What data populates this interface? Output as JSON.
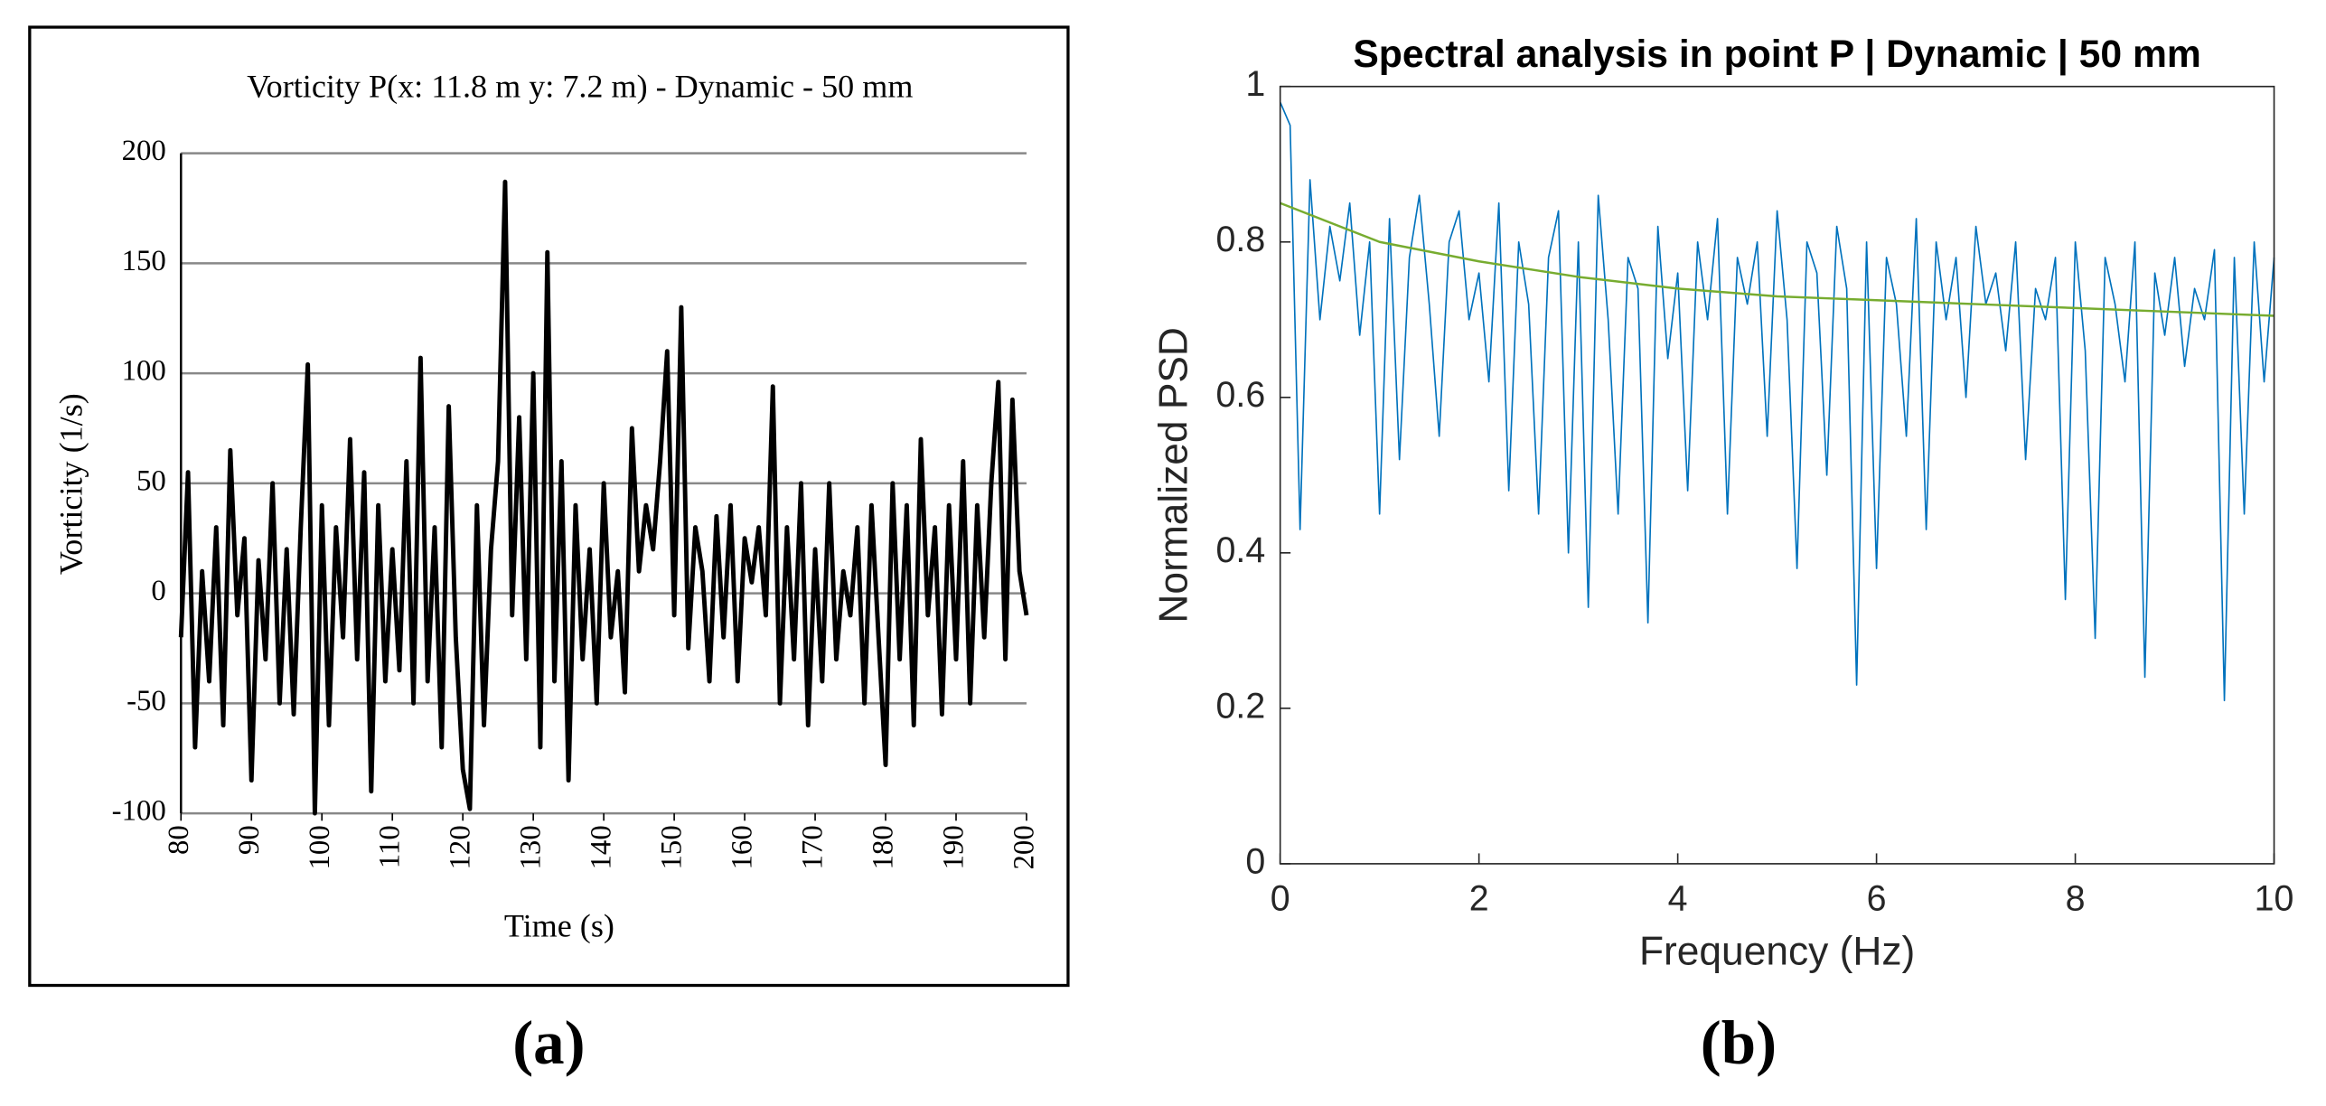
{
  "chart_data": [
    {
      "type": "line",
      "title": "Vorticity P(x: 11.8 m y: 7.2 m) - Dynamic - 50 mm",
      "xlabel": "Time (s)",
      "ylabel": "Vorticity (1/s)",
      "panel_label": "(a)",
      "xlim": [
        80,
        200
      ],
      "ylim": [
        -100,
        200
      ],
      "xticks": [
        80,
        90,
        100,
        110,
        120,
        130,
        140,
        150,
        160,
        170,
        180,
        190,
        200
      ],
      "yticks": [
        -100,
        -50,
        0,
        50,
        100,
        150,
        200
      ],
      "grid": true,
      "series": [
        {
          "color": "#000000",
          "x": [
            80,
            81,
            82,
            83,
            84,
            85,
            86,
            87,
            88,
            89,
            90,
            91,
            92,
            93,
            94,
            95,
            96,
            97,
            98,
            99,
            100,
            101,
            102,
            103,
            104,
            105,
            106,
            107,
            108,
            109,
            110,
            111,
            112,
            113,
            114,
            115,
            116,
            117,
            118,
            119,
            120,
            121,
            122,
            123,
            124,
            125,
            126,
            127,
            128,
            129,
            130,
            131,
            132,
            133,
            134,
            135,
            136,
            137,
            138,
            139,
            140,
            141,
            142,
            143,
            144,
            145,
            146,
            147,
            148,
            149,
            150,
            151,
            152,
            153,
            154,
            155,
            156,
            157,
            158,
            159,
            160,
            161,
            162,
            163,
            164,
            165,
            166,
            167,
            168,
            169,
            170,
            171,
            172,
            173,
            174,
            175,
            176,
            177,
            178,
            179,
            180,
            181,
            182,
            183,
            184,
            185,
            186,
            187,
            188,
            189,
            190,
            191,
            192,
            193,
            194,
            195,
            196,
            197,
            198,
            199,
            200
          ],
          "values": [
            -20,
            55,
            -70,
            10,
            -40,
            30,
            -60,
            65,
            -10,
            25,
            -85,
            15,
            -30,
            50,
            -50,
            20,
            -55,
            30,
            104,
            -100,
            40,
            -60,
            30,
            -20,
            70,
            -30,
            55,
            -90,
            40,
            -40,
            20,
            -35,
            60,
            -50,
            107,
            -40,
            30,
            -70,
            85,
            -20,
            -80,
            -98,
            40,
            -60,
            20,
            60,
            187,
            -10,
            80,
            -30,
            100,
            -70,
            155,
            -40,
            60,
            -85,
            40,
            -30,
            20,
            -50,
            50,
            -20,
            10,
            -45,
            75,
            10,
            40,
            20,
            60,
            110,
            -10,
            130,
            -25,
            30,
            10,
            -40,
            35,
            -20,
            40,
            -40,
            25,
            5,
            30,
            -10,
            94,
            -50,
            30,
            -30,
            50,
            -60,
            20,
            -40,
            50,
            -30,
            10,
            -10,
            30,
            -50,
            40,
            -20,
            -78,
            50,
            -30,
            40,
            -60,
            70,
            -10,
            30,
            -55,
            40,
            -30,
            60,
            -50,
            40,
            -20,
            50,
            96,
            -30,
            88,
            10,
            -10
          ]
        }
      ]
    },
    {
      "type": "line",
      "title": "Spectral analysis in point P | Dynamic | 50 mm",
      "xlabel": "Frequency (Hz)",
      "ylabel": "Normalized PSD",
      "panel_label": "(b)",
      "xlim": [
        0,
        10
      ],
      "ylim": [
        0,
        1
      ],
      "xticks": [
        0,
        2,
        4,
        6,
        8,
        10
      ],
      "yticks": [
        0,
        0.2,
        0.4,
        0.6,
        0.8,
        1
      ],
      "grid": false,
      "series": [
        {
          "color": "#0072bd",
          "x": [
            0,
            0.1,
            0.2,
            0.3,
            0.4,
            0.5,
            0.6,
            0.7,
            0.8,
            0.9,
            1,
            1.1,
            1.2,
            1.3,
            1.4,
            1.5,
            1.6,
            1.7,
            1.8,
            1.9,
            2,
            2.1,
            2.2,
            2.3,
            2.4,
            2.5,
            2.6,
            2.7,
            2.8,
            2.9,
            3,
            3.1,
            3.2,
            3.3,
            3.4,
            3.5,
            3.6,
            3.7,
            3.8,
            3.9,
            4,
            4.1,
            4.2,
            4.3,
            4.4,
            4.5,
            4.6,
            4.7,
            4.8,
            4.9,
            5,
            5.1,
            5.2,
            5.3,
            5.4,
            5.5,
            5.6,
            5.7,
            5.8,
            5.9,
            6,
            6.1,
            6.2,
            6.3,
            6.4,
            6.5,
            6.6,
            6.7,
            6.8,
            6.9,
            7,
            7.1,
            7.2,
            7.3,
            7.4,
            7.5,
            7.6,
            7.7,
            7.8,
            7.9,
            8,
            8.1,
            8.2,
            8.3,
            8.4,
            8.5,
            8.6,
            8.7,
            8.8,
            8.9,
            9,
            9.1,
            9.2,
            9.3,
            9.4,
            9.5,
            9.6,
            9.7,
            9.8,
            9.9,
            10
          ],
          "values": [
            0.98,
            0.95,
            0.43,
            0.88,
            0.7,
            0.82,
            0.75,
            0.85,
            0.68,
            0.8,
            0.45,
            0.83,
            0.52,
            0.78,
            0.86,
            0.72,
            0.55,
            0.8,
            0.84,
            0.7,
            0.76,
            0.62,
            0.85,
            0.48,
            0.8,
            0.72,
            0.45,
            0.78,
            0.84,
            0.4,
            0.8,
            0.33,
            0.86,
            0.7,
            0.45,
            0.78,
            0.74,
            0.31,
            0.82,
            0.65,
            0.76,
            0.48,
            0.8,
            0.7,
            0.83,
            0.45,
            0.78,
            0.72,
            0.8,
            0.55,
            0.84,
            0.7,
            0.38,
            0.8,
            0.76,
            0.5,
            0.82,
            0.74,
            0.23,
            0.8,
            0.38,
            0.78,
            0.72,
            0.55,
            0.83,
            0.43,
            0.8,
            0.7,
            0.78,
            0.6,
            0.82,
            0.72,
            0.76,
            0.66,
            0.8,
            0.52,
            0.74,
            0.7,
            0.78,
            0.34,
            0.8,
            0.66,
            0.29,
            0.78,
            0.72,
            0.62,
            0.8,
            0.24,
            0.76,
            0.68,
            0.78,
            0.64,
            0.74,
            0.7,
            0.79,
            0.21,
            0.78,
            0.45,
            0.8,
            0.62,
            0.78
          ]
        },
        {
          "color": "#77ac30",
          "x": [
            0,
            1,
            2,
            3,
            4,
            5,
            6,
            7,
            8,
            9,
            10
          ],
          "values": [
            0.85,
            0.8,
            0.775,
            0.755,
            0.74,
            0.73,
            0.725,
            0.72,
            0.715,
            0.71,
            0.705
          ]
        }
      ]
    }
  ]
}
